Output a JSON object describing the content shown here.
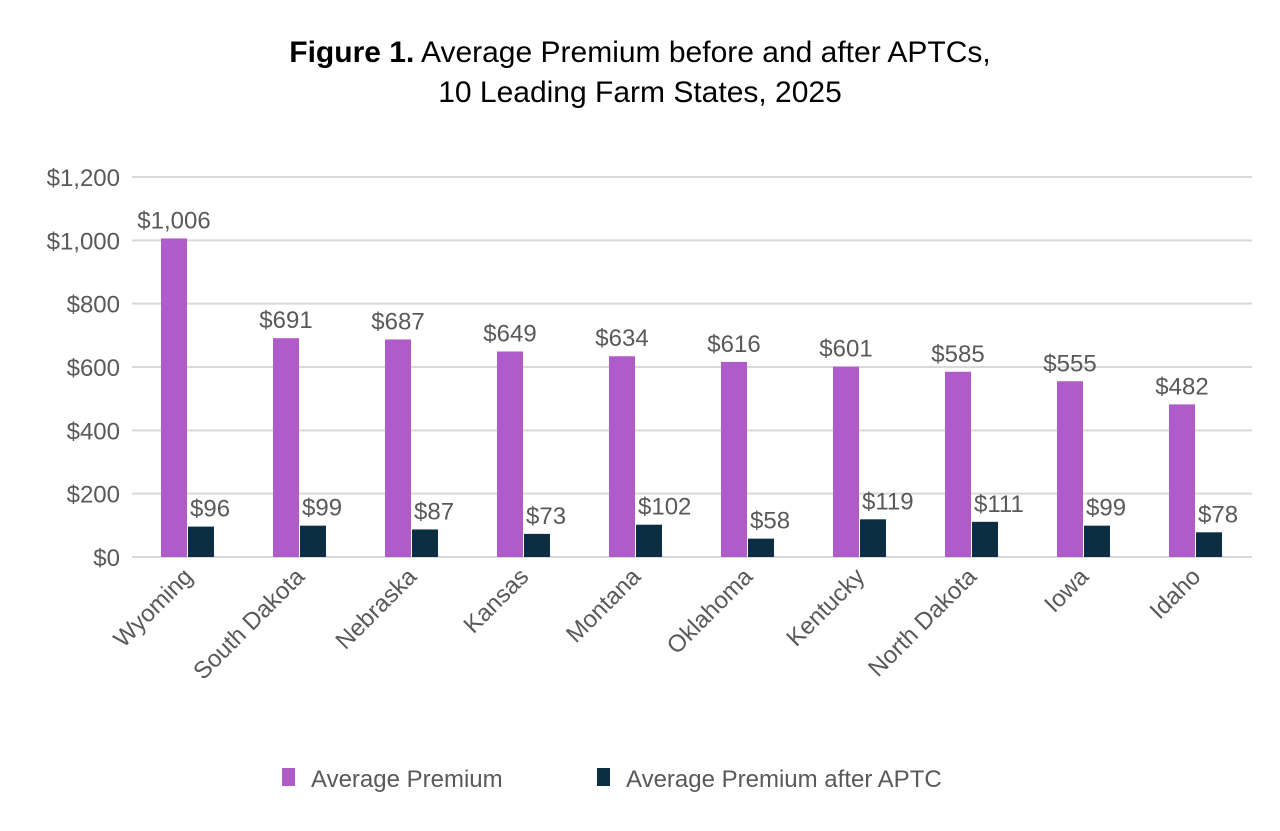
{
  "chart_data": {
    "type": "bar",
    "title_prefix": "Figure 1.",
    "title_line1": "Average Premium before and after APTCs,",
    "title_line2": "10 Leading Farm States, 2025",
    "xlabel": "",
    "ylabel": "",
    "ylim": [
      0,
      1200
    ],
    "yticks": [
      0,
      200,
      400,
      600,
      800,
      1000,
      1200
    ],
    "ytick_labels": [
      "$0",
      "$200",
      "$400",
      "$600",
      "$800",
      "$1,000",
      "$1,200"
    ],
    "grid": true,
    "legend_position": "bottom",
    "categories": [
      "Wyoming",
      "South Dakota",
      "Nebraska",
      "Kansas",
      "Montana",
      "Oklahoma",
      "Kentucky",
      "North Dakota",
      "Iowa",
      "Idaho"
    ],
    "series": [
      {
        "name": "Average Premium",
        "color": "#B05CC8",
        "values": [
          1006,
          691,
          687,
          649,
          634,
          616,
          601,
          585,
          555,
          482
        ],
        "labels": [
          "$1,006",
          "$691",
          "$687",
          "$649",
          "$634",
          "$616",
          "$601",
          "$585",
          "$555",
          "$482"
        ]
      },
      {
        "name": "Average Premium after APTC",
        "color": "#0B2E43",
        "values": [
          96,
          99,
          87,
          73,
          102,
          58,
          119,
          111,
          99,
          78
        ],
        "labels": [
          "$96",
          "$99",
          "$87",
          "$73",
          "$102",
          "$58",
          "$119",
          "$111",
          "$99",
          "$78"
        ]
      }
    ]
  }
}
